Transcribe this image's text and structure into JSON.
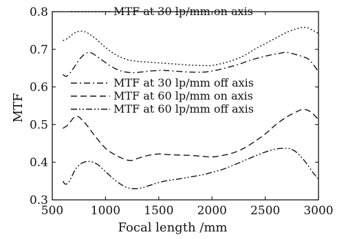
{
  "chart_data": {
    "type": "line",
    "xlabel": "Focal length /mm",
    "ylabel": "MTF",
    "xlim": [
      500,
      3000
    ],
    "ylim": [
      0.3,
      0.8
    ],
    "xticks": [
      500,
      1000,
      1500,
      2000,
      2500,
      3000
    ],
    "yticks": [
      0.3,
      0.4,
      0.5,
      0.6,
      0.7,
      0.8
    ],
    "xtick_labels": [
      "500",
      "1000",
      "1500",
      "2000",
      "2500",
      "3000"
    ],
    "ytick_labels": [
      "0.3",
      "0.4",
      "0.5",
      "0.6",
      "0.7",
      "0.8"
    ],
    "grid": false,
    "series": [
      {
        "name": "MTF at 30 lp/mm on axis",
        "dash": "dotted",
        "x": [
          600,
          650,
          700,
          760,
          820,
          900,
          1000,
          1100,
          1200,
          1300,
          1400,
          1500,
          1600,
          1700,
          1800,
          1900,
          2000,
          2100,
          2200,
          2300,
          2400,
          2500,
          2600,
          2700,
          2800,
          2850,
          2900,
          2950,
          3000
        ],
        "y": [
          0.723,
          0.73,
          0.742,
          0.748,
          0.745,
          0.73,
          0.705,
          0.685,
          0.673,
          0.668,
          0.666,
          0.664,
          0.662,
          0.66,
          0.658,
          0.657,
          0.657,
          0.663,
          0.671,
          0.683,
          0.7,
          0.715,
          0.73,
          0.745,
          0.755,
          0.758,
          0.757,
          0.75,
          0.742
        ]
      },
      {
        "name": "MTF at 30 lp/mm off axis",
        "dash": "dash-dot",
        "x": [
          600,
          630,
          660,
          700,
          760,
          820,
          870,
          950,
          1050,
          1150,
          1250,
          1350,
          1450,
          1550,
          1650,
          1750,
          1850,
          1950,
          2050,
          2150,
          2250,
          2350,
          2450,
          2550,
          2650,
          2700,
          2800,
          2900,
          2950,
          3000
        ],
        "y": [
          0.633,
          0.628,
          0.635,
          0.65,
          0.675,
          0.69,
          0.69,
          0.675,
          0.655,
          0.642,
          0.638,
          0.64,
          0.643,
          0.644,
          0.642,
          0.64,
          0.639,
          0.64,
          0.645,
          0.652,
          0.66,
          0.67,
          0.678,
          0.685,
          0.69,
          0.692,
          0.685,
          0.675,
          0.66,
          0.64
        ]
      },
      {
        "name": "MTF at 60 lp/mm on axis",
        "dash": "dashed",
        "x": [
          600,
          650,
          700,
          730,
          760,
          820,
          900,
          1000,
          1100,
          1200,
          1250,
          1300,
          1400,
          1500,
          1600,
          1700,
          1800,
          1900,
          2000,
          2100,
          2200,
          2300,
          2400,
          2500,
          2600,
          2700,
          2800,
          2850,
          2900,
          2950,
          3000
        ],
        "y": [
          0.49,
          0.5,
          0.518,
          0.522,
          0.518,
          0.5,
          0.47,
          0.437,
          0.418,
          0.406,
          0.405,
          0.41,
          0.418,
          0.422,
          0.42,
          0.419,
          0.418,
          0.416,
          0.414,
          0.418,
          0.425,
          0.437,
          0.455,
          0.475,
          0.5,
          0.52,
          0.535,
          0.54,
          0.538,
          0.528,
          0.513
        ]
      },
      {
        "name": "MTF at 60 lp/mm off axis",
        "dash": "dash-dot-dot",
        "x": [
          600,
          620,
          650,
          680,
          720,
          780,
          850,
          920,
          1000,
          1100,
          1200,
          1300,
          1400,
          1500,
          1600,
          1700,
          1800,
          1900,
          2000,
          2100,
          2200,
          2300,
          2400,
          2500,
          2600,
          2700,
          2750,
          2800,
          2850,
          2900,
          2950,
          3000
        ],
        "y": [
          0.35,
          0.342,
          0.345,
          0.36,
          0.382,
          0.398,
          0.402,
          0.395,
          0.375,
          0.35,
          0.333,
          0.33,
          0.337,
          0.346,
          0.352,
          0.356,
          0.361,
          0.366,
          0.373,
          0.381,
          0.392,
          0.404,
          0.416,
          0.427,
          0.435,
          0.437,
          0.434,
          0.425,
          0.41,
          0.392,
          0.372,
          0.355
        ]
      }
    ],
    "legend": [
      {
        "label": "MTF at 30 lp/mm on axis",
        "dash": "dotted",
        "placement": "top"
      },
      {
        "label": "MTF at 30 lp/mm off axis",
        "dash": "dash-dot",
        "placement": "middle"
      },
      {
        "label": "MTF at 60 lp/mm on axis",
        "dash": "dashed",
        "placement": "middle"
      },
      {
        "label": "MTF at 60 lp/mm off axis",
        "dash": "dash-dot-dot",
        "placement": "middle"
      }
    ]
  }
}
